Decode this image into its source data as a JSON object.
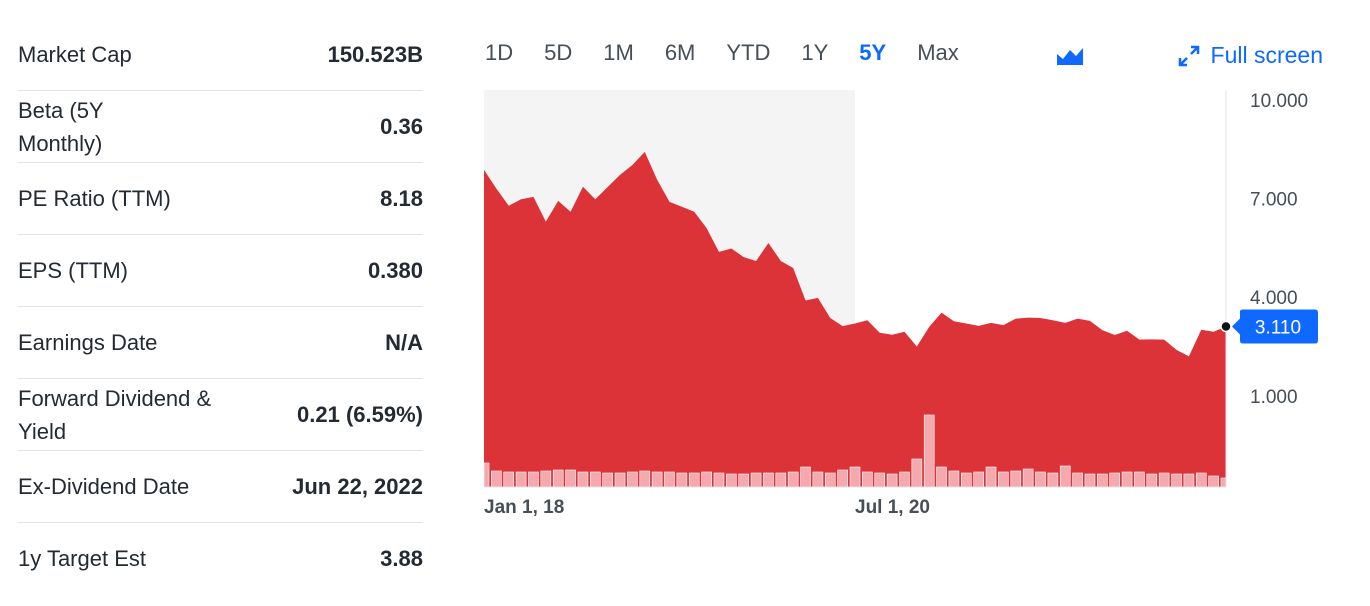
{
  "stats": {
    "rows": [
      [
        "Market Cap",
        "150.523B"
      ],
      [
        "Beta (5Y Monthly)",
        "0.36"
      ],
      [
        "PE Ratio (TTM)",
        "8.18"
      ],
      [
        "EPS (TTM)",
        "0.380"
      ],
      [
        "Earnings Date",
        "N/A"
      ],
      [
        "Forward Dividend & Yield",
        "0.21 (6.59%)"
      ],
      [
        "Ex-Dividend Date",
        "Jun 22, 2022"
      ],
      [
        "1y Target Est",
        "3.88"
      ]
    ]
  },
  "ranges": [
    {
      "label": "1D",
      "selected": false
    },
    {
      "label": "5D",
      "selected": false
    },
    {
      "label": "1M",
      "selected": false
    },
    {
      "label": "6M",
      "selected": false
    },
    {
      "label": "YTD",
      "selected": false
    },
    {
      "label": "1Y",
      "selected": false
    },
    {
      "label": "5Y",
      "selected": true
    },
    {
      "label": "Max",
      "selected": false
    }
  ],
  "full_screen": "Full screen",
  "chart_data": {
    "type": "area",
    "color": "#dc3338",
    "volume_color": "#f3a9ad",
    "values": [
      7.87,
      7.3,
      6.78,
      6.98,
      7.05,
      6.3,
      6.93,
      6.6,
      7.36,
      6.98,
      7.35,
      7.72,
      8.02,
      8.42,
      7.57,
      6.9,
      6.75,
      6.6,
      6.1,
      5.38,
      5.48,
      5.22,
      5.1,
      5.65,
      5.1,
      4.89,
      3.9,
      3.98,
      3.37,
      3.12,
      3.2,
      3.3,
      2.92,
      2.86,
      2.95,
      2.5,
      3.1,
      3.53,
      3.27,
      3.2,
      3.13,
      3.22,
      3.15,
      3.35,
      3.38,
      3.37,
      3.3,
      3.22,
      3.35,
      3.28,
      3.0,
      2.85,
      2.98,
      2.71,
      2.72,
      2.71,
      2.4,
      2.2,
      3.01,
      2.95,
      3.11
    ],
    "volume": [
      24,
      16,
      15,
      15,
      15,
      16,
      17,
      17,
      15,
      15,
      14,
      14,
      15,
      16,
      15,
      15,
      14,
      14,
      15,
      14,
      13,
      13,
      14,
      14,
      14,
      15,
      20,
      15,
      14,
      17,
      20,
      15,
      14,
      13,
      15,
      28,
      72,
      20,
      16,
      14,
      15,
      20,
      15,
      16,
      18,
      15,
      14,
      21,
      14,
      13,
      13,
      14,
      15,
      15,
      13,
      14,
      13,
      13,
      14,
      11,
      9
    ],
    "xlim": [
      0,
      60
    ],
    "xticks": [
      {
        "value": 0,
        "label": "Jan 1, 18"
      },
      {
        "value": 30,
        "label": "Jul 1, 20"
      }
    ],
    "ylim": [
      -1.77,
      10.3
    ],
    "yticks": [
      {
        "value": 10,
        "label": "10.000"
      },
      {
        "value": 7,
        "label": "7.000"
      },
      {
        "value": 4,
        "label": "4.000"
      },
      {
        "value": 1,
        "label": "1.000"
      }
    ],
    "grid": false,
    "current": {
      "value": 3.11,
      "label": "3.110"
    }
  }
}
